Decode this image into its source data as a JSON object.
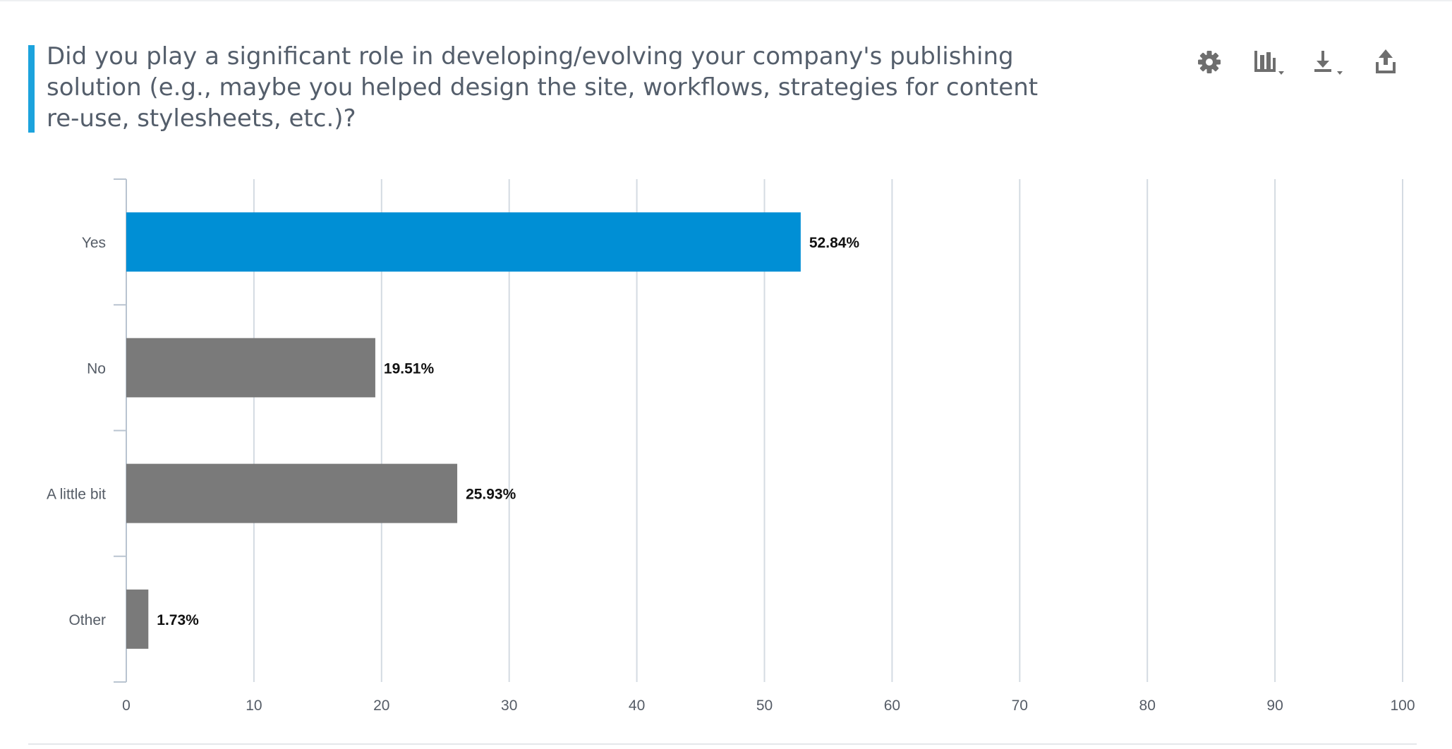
{
  "question": {
    "title": "Did you play a significant role in developing/evolving your company's publishing solution (e.g., maybe you helped design the site,  workflows, strategies for content re-use, stylesheets, etc.)?",
    "accent_color": "#1ca3dd"
  },
  "toolbar": {
    "items": [
      {
        "icon": "gear-icon"
      },
      {
        "icon": "bar-chart-icon",
        "has_dropdown": true
      },
      {
        "icon": "download-icon",
        "has_dropdown": true
      },
      {
        "icon": "share-icon"
      }
    ]
  },
  "chart_data": {
    "type": "bar",
    "orientation": "horizontal",
    "categories": [
      "Yes",
      "No",
      "A little bit",
      "Other"
    ],
    "values": [
      52.84,
      19.51,
      25.93,
      1.73
    ],
    "data_labels": [
      "52.84%",
      "19.51%",
      "25.93%",
      "1.73%"
    ],
    "xlim": [
      0,
      100
    ],
    "x_ticks": [
      0,
      10,
      20,
      30,
      40,
      50,
      60,
      70,
      80,
      90,
      100
    ],
    "x_tick_labels": [
      "0",
      "10",
      "20",
      "30",
      "40",
      "50",
      "60",
      "70",
      "80",
      "90",
      "100"
    ],
    "grid": true,
    "colors": {
      "highlight": "#008fd5",
      "default": "#7a7a7a",
      "grid": "#d4dbe2",
      "axis": "#b9c4d0"
    },
    "highlight_index": 0
  }
}
